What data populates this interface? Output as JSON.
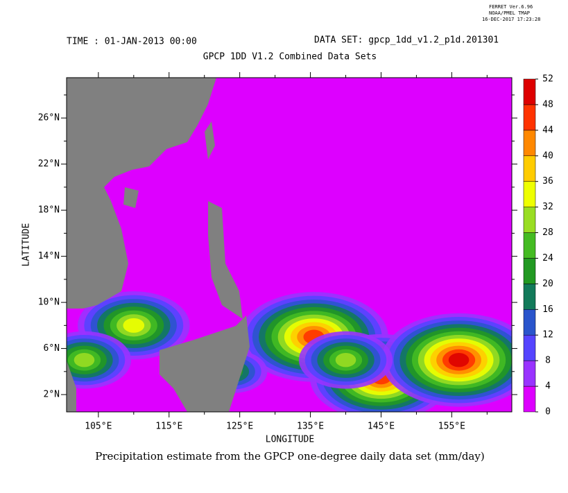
{
  "chart_data": {
    "type": "contour-map",
    "header": {
      "program": "FERRET Ver.6.96",
      "org": "NOAA/PMEL TMAP",
      "timestamp": "16-DEC-2017 17:23:28"
    },
    "time": "TIME : 01-JAN-2013 00:00",
    "dataset": "DATA SET: gpcp_1dd_v1.2_p1d.201301",
    "title": "GPCP 1DD V1.2 Combined Data Sets",
    "xlabel": "LONGITUDE",
    "ylabel": "LATITUDE",
    "caption": "Precipitation estimate from the GPCP one-degree daily data set (mm/day)",
    "xlim": [
      100.5,
      163.5
    ],
    "ylim": [
      0.5,
      29.5
    ],
    "xticks": [
      {
        "value": 105,
        "label": "105°E"
      },
      {
        "value": 115,
        "label": "115°E"
      },
      {
        "value": 125,
        "label": "125°E"
      },
      {
        "value": 135,
        "label": "135°E"
      },
      {
        "value": 145,
        "label": "145°E"
      },
      {
        "value": 155,
        "label": "155°E"
      }
    ],
    "xminorticks": [
      110,
      120,
      130,
      140,
      150,
      160
    ],
    "yticks": [
      {
        "value": 2,
        "label": "2°N"
      },
      {
        "value": 6,
        "label": "6°N"
      },
      {
        "value": 10,
        "label": "10°N"
      },
      {
        "value": 14,
        "label": "14°N"
      },
      {
        "value": 18,
        "label": "18°N"
      },
      {
        "value": 22,
        "label": "22°N"
      },
      {
        "value": 26,
        "label": "26°N"
      }
    ],
    "yminorticks": [
      4,
      8,
      12,
      16,
      20,
      24,
      28
    ],
    "levels": [
      0,
      4,
      8,
      12,
      16,
      20,
      24,
      28,
      32,
      36,
      40,
      44,
      48,
      52
    ],
    "colors": [
      "#dd00ff",
      "#9933ff",
      "#5544ff",
      "#2a55cc",
      "#127a5a",
      "#229922",
      "#44bb22",
      "#99dd22",
      "#eeff00",
      "#ffcc00",
      "#ff8800",
      "#ff3300",
      "#dd0000"
    ],
    "land_color": "#808080",
    "hotspots": {
      "lon": [
        135.5,
        145,
        156,
        110,
        140,
        103,
        124
      ],
      "lat": [
        7,
        3.5,
        5,
        8,
        5,
        5,
        4
      ],
      "values": [
        46,
        44,
        48,
        34,
        28,
        28,
        20
      ]
    }
  }
}
